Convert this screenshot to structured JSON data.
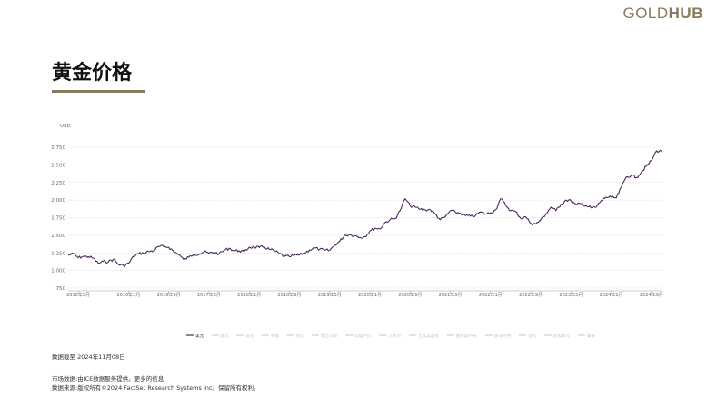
{
  "header": {
    "logo_gold": "GOLD",
    "logo_hub": "HUB",
    "title": "黄金价格"
  },
  "footer": {
    "as_of": "数据截至 2024年11月08日",
    "credit_line1": "市场数据:由ICE数据服务提供。更多的信息",
    "credit_line2": "数据来源:版权所有©2024 FactSet Research Systems Inc。保留所有权利。"
  },
  "colors": {
    "line": "#4b2a5c",
    "grid": "#cccccc",
    "accent": "#8a7a5c"
  },
  "chart_data": {
    "type": "line",
    "ylabel": "USD",
    "ylim": [
      750,
      2750
    ],
    "yticks": [
      750,
      1000,
      1250,
      1500,
      1750,
      2000,
      2250,
      2500,
      2750
    ],
    "ytick_labels": [
      "750",
      "1,000",
      "1,250",
      "1,500",
      "1,750",
      "2,000",
      "2,250",
      "2,500",
      "2,750"
    ],
    "xlim": [
      "2015-01",
      "2024-11"
    ],
    "xticks": [
      "2015-03",
      "2016-01",
      "2016-09",
      "2017-05",
      "2018-01",
      "2018-09",
      "2019-05",
      "2020-01",
      "2020-09",
      "2021-05",
      "2022-01",
      "2022-09",
      "2023-05",
      "2024-01",
      "2024-09"
    ],
    "xtick_labels": [
      "2015年3月",
      "2016年1月",
      "2016年9月",
      "2017年5月",
      "2018年1月",
      "2018年9月",
      "2019年5月",
      "2020年1月",
      "2020年9月",
      "2021年5月",
      "2022年1月",
      "2022年9月",
      "2023年5月",
      "2024年1月",
      "2024年9月"
    ],
    "grid": true,
    "legend_position": "bottom",
    "legend": [
      "美元",
      "欧元",
      "日元",
      "英镑",
      "加元",
      "瑞士法郎",
      "印度卢比",
      "人民币",
      "土耳其里拉",
      "俄罗斯卢布",
      "南非兰特",
      "澳元",
      "新加坡元",
      "泰铢"
    ],
    "active_series": "美元",
    "series": [
      {
        "name": "美元",
        "points": [
          [
            "2015-01",
            1215
          ],
          [
            "2015-02",
            1240
          ],
          [
            "2015-03",
            1180
          ],
          [
            "2015-04",
            1200
          ],
          [
            "2015-05",
            1195
          ],
          [
            "2015-06",
            1175
          ],
          [
            "2015-07",
            1100
          ],
          [
            "2015-08",
            1130
          ],
          [
            "2015-09",
            1125
          ],
          [
            "2015-10",
            1160
          ],
          [
            "2015-11",
            1085
          ],
          [
            "2015-12",
            1070
          ],
          [
            "2016-01",
            1100
          ],
          [
            "2016-02",
            1200
          ],
          [
            "2016-03",
            1240
          ],
          [
            "2016-04",
            1245
          ],
          [
            "2016-05",
            1270
          ],
          [
            "2016-06",
            1280
          ],
          [
            "2016-07",
            1340
          ],
          [
            "2016-08",
            1340
          ],
          [
            "2016-09",
            1330
          ],
          [
            "2016-10",
            1270
          ],
          [
            "2016-11",
            1230
          ],
          [
            "2016-12",
            1150
          ],
          [
            "2017-01",
            1190
          ],
          [
            "2017-02",
            1235
          ],
          [
            "2017-03",
            1230
          ],
          [
            "2017-04",
            1265
          ],
          [
            "2017-05",
            1245
          ],
          [
            "2017-06",
            1260
          ],
          [
            "2017-07",
            1235
          ],
          [
            "2017-08",
            1285
          ],
          [
            "2017-09",
            1315
          ],
          [
            "2017-10",
            1280
          ],
          [
            "2017-11",
            1280
          ],
          [
            "2017-12",
            1265
          ],
          [
            "2018-01",
            1330
          ],
          [
            "2018-02",
            1330
          ],
          [
            "2018-03",
            1325
          ],
          [
            "2018-04",
            1335
          ],
          [
            "2018-05",
            1300
          ],
          [
            "2018-06",
            1280
          ],
          [
            "2018-07",
            1240
          ],
          [
            "2018-08",
            1200
          ],
          [
            "2018-09",
            1195
          ],
          [
            "2018-10",
            1215
          ],
          [
            "2018-11",
            1220
          ],
          [
            "2018-12",
            1250
          ],
          [
            "2019-01",
            1290
          ],
          [
            "2019-02",
            1320
          ],
          [
            "2019-03",
            1300
          ],
          [
            "2019-04",
            1285
          ],
          [
            "2019-05",
            1285
          ],
          [
            "2019-06",
            1360
          ],
          [
            "2019-07",
            1415
          ],
          [
            "2019-08",
            1500
          ],
          [
            "2019-09",
            1510
          ],
          [
            "2019-10",
            1495
          ],
          [
            "2019-11",
            1470
          ],
          [
            "2019-12",
            1480
          ],
          [
            "2020-01",
            1560
          ],
          [
            "2020-02",
            1600
          ],
          [
            "2020-03",
            1590
          ],
          [
            "2020-04",
            1680
          ],
          [
            "2020-05",
            1720
          ],
          [
            "2020-06",
            1735
          ],
          [
            "2020-07",
            1850
          ],
          [
            "2020-08",
            2020
          ],
          [
            "2020-09",
            1920
          ],
          [
            "2020-10",
            1900
          ],
          [
            "2020-11",
            1870
          ],
          [
            "2020-12",
            1860
          ],
          [
            "2021-01",
            1865
          ],
          [
            "2021-02",
            1800
          ],
          [
            "2021-03",
            1720
          ],
          [
            "2021-04",
            1760
          ],
          [
            "2021-05",
            1850
          ],
          [
            "2021-06",
            1830
          ],
          [
            "2021-07",
            1810
          ],
          [
            "2021-08",
            1780
          ],
          [
            "2021-09",
            1770
          ],
          [
            "2021-10",
            1780
          ],
          [
            "2021-11",
            1830
          ],
          [
            "2021-12",
            1800
          ],
          [
            "2022-01",
            1820
          ],
          [
            "2022-02",
            1860
          ],
          [
            "2022-03",
            2020
          ],
          [
            "2022-04",
            1930
          ],
          [
            "2022-05",
            1850
          ],
          [
            "2022-06",
            1835
          ],
          [
            "2022-07",
            1740
          ],
          [
            "2022-08",
            1760
          ],
          [
            "2022-09",
            1670
          ],
          [
            "2022-10",
            1660
          ],
          [
            "2022-11",
            1720
          ],
          [
            "2022-12",
            1800
          ],
          [
            "2023-01",
            1900
          ],
          [
            "2023-02",
            1850
          ],
          [
            "2023-03",
            1940
          ],
          [
            "2023-04",
            2000
          ],
          [
            "2023-05",
            1990
          ],
          [
            "2023-06",
            1930
          ],
          [
            "2023-07",
            1950
          ],
          [
            "2023-08",
            1920
          ],
          [
            "2023-09",
            1890
          ],
          [
            "2023-10",
            1900
          ],
          [
            "2023-11",
            1990
          ],
          [
            "2023-12",
            2040
          ],
          [
            "2024-01",
            2040
          ],
          [
            "2024-02",
            2030
          ],
          [
            "2024-03",
            2180
          ],
          [
            "2024-04",
            2330
          ],
          [
            "2024-05",
            2350
          ],
          [
            "2024-06",
            2320
          ],
          [
            "2024-07",
            2400
          ],
          [
            "2024-08",
            2480
          ],
          [
            "2024-09",
            2560
          ],
          [
            "2024-10",
            2700
          ],
          [
            "2024-11",
            2690
          ]
        ]
      }
    ]
  }
}
